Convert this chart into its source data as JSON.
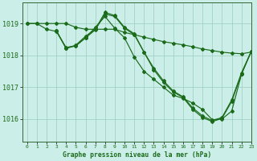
{
  "xlabel": "Graphe pression niveau de la mer (hPa)",
  "xlim": [
    -0.5,
    23
  ],
  "ylim": [
    1015.3,
    1019.65
  ],
  "yticks": [
    1016,
    1017,
    1018,
    1019
  ],
  "xticks": [
    0,
    1,
    2,
    3,
    4,
    5,
    6,
    7,
    8,
    9,
    10,
    11,
    12,
    13,
    14,
    15,
    16,
    17,
    18,
    19,
    20,
    21,
    22,
    23
  ],
  "bg_color": "#cceee8",
  "grid_color": "#99ccbb",
  "line_color": "#1a6b1a",
  "line1": {
    "x": [
      0,
      1,
      2,
      3,
      4,
      5,
      6,
      7,
      8,
      9,
      10,
      11,
      12,
      13,
      14,
      15,
      16,
      17,
      18,
      19,
      20,
      21,
      22,
      23
    ],
    "y": [
      1019.0,
      1019.0,
      1019.0,
      1019.0,
      1019.0,
      1018.88,
      1018.82,
      1018.82,
      1018.82,
      1018.82,
      1018.72,
      1018.65,
      1018.57,
      1018.5,
      1018.43,
      1018.38,
      1018.33,
      1018.27,
      1018.2,
      1018.15,
      1018.1,
      1018.07,
      1018.05,
      1018.1
    ]
  },
  "line2": {
    "x": [
      0,
      1,
      2,
      3,
      4,
      5,
      6,
      7,
      8,
      9,
      10,
      11,
      12,
      13,
      14,
      15,
      16,
      17,
      18,
      19,
      20,
      21,
      22,
      23
    ],
    "y": [
      1019.0,
      1019.0,
      1018.82,
      1018.75,
      1018.25,
      1018.3,
      1018.55,
      1018.88,
      1019.22,
      1018.85,
      1018.55,
      1017.95,
      1017.5,
      1017.25,
      1017.0,
      1016.75,
      1016.65,
      1016.5,
      1016.3,
      1015.98,
      1016.0,
      1016.25,
      1017.4,
      1018.12
    ]
  },
  "line3": {
    "x": [
      3,
      4,
      5,
      6,
      7,
      8,
      9,
      10,
      11,
      12,
      13,
      14,
      15,
      16,
      17,
      18,
      19,
      20,
      21,
      22,
      23
    ],
    "y": [
      1018.78,
      1018.22,
      1018.3,
      1018.55,
      1018.8,
      1019.3,
      1019.22,
      1018.85,
      1018.65,
      1018.1,
      1017.6,
      1017.2,
      1016.88,
      1016.7,
      1016.35,
      1016.1,
      1015.95,
      1016.05,
      1016.6,
      1017.45,
      1018.12
    ]
  },
  "line4": {
    "x": [
      3,
      4,
      5,
      6,
      7,
      8,
      9,
      10,
      11,
      12,
      13,
      14,
      15,
      16,
      17,
      18,
      19,
      20,
      21,
      22,
      23
    ],
    "y": [
      1018.78,
      1018.22,
      1018.32,
      1018.6,
      1018.82,
      1019.35,
      1019.25,
      1018.88,
      1018.68,
      1018.1,
      1017.55,
      1017.15,
      1016.85,
      1016.68,
      1016.3,
      1016.05,
      1015.92,
      1016.02,
      1016.55,
      1017.42,
      1018.12
    ]
  }
}
